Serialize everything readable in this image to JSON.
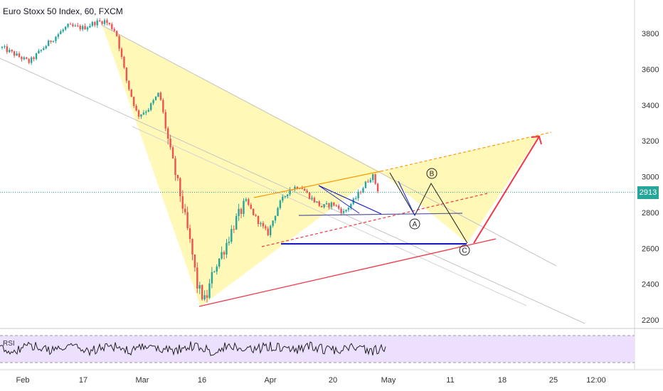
{
  "chart_data": {
    "type": "candlestick",
    "title": "Euro Stoxx 50 Index, 60, FXCM",
    "current_price": "2913",
    "y_ticks": [
      "3800",
      "3600",
      "3400",
      "3200",
      "3000",
      "2800",
      "2600",
      "2400",
      "2200"
    ],
    "y_tick_values": [
      3800,
      3600,
      3400,
      3200,
      3000,
      2800,
      2600,
      2400,
      2200
    ],
    "ylim": [
      2130,
      3980
    ],
    "x_ticks": [
      "Feb",
      "17",
      "Mar",
      "16",
      "Apr",
      "20",
      "May",
      "11",
      "18",
      "25",
      "12:00"
    ],
    "price_path": [
      {
        "t": 0.0,
        "p": 3720
      },
      {
        "t": 5,
        "p": 3640
      },
      {
        "t": 9,
        "p": 3760
      },
      {
        "t": 12,
        "p": 3840
      },
      {
        "t": 15,
        "p": 3830
      },
      {
        "t": 17,
        "p": 3860
      },
      {
        "t": 19,
        "p": 3870
      },
      {
        "t": 21,
        "p": 3810
      },
      {
        "t": 23,
        "p": 3530
      },
      {
        "t": 25,
        "p": 3340
      },
      {
        "t": 27,
        "p": 3380
      },
      {
        "t": 29,
        "p": 3470
      },
      {
        "t": 31,
        "p": 3140
      },
      {
        "t": 33,
        "p": 2880
      },
      {
        "t": 35,
        "p": 2580
      },
      {
        "t": 36,
        "p": 2390
      },
      {
        "t": 37.5,
        "p": 2300
      },
      {
        "t": 39,
        "p": 2480
      },
      {
        "t": 41,
        "p": 2600
      },
      {
        "t": 43,
        "p": 2750
      },
      {
        "t": 45,
        "p": 2860
      },
      {
        "t": 47,
        "p": 2760
      },
      {
        "t": 49,
        "p": 2680
      },
      {
        "t": 51,
        "p": 2840
      },
      {
        "t": 53,
        "p": 2930
      },
      {
        "t": 55,
        "p": 2950
      },
      {
        "t": 57,
        "p": 2880
      },
      {
        "t": 59,
        "p": 2830
      },
      {
        "t": 61,
        "p": 2850
      },
      {
        "t": 63,
        "p": 2800
      },
      {
        "t": 65,
        "p": 2870
      },
      {
        "t": 67,
        "p": 2960
      },
      {
        "t": 68.3,
        "p": 3010
      },
      {
        "t": 69.5,
        "p": 2910
      }
    ],
    "rsi": {
      "label": "RSI",
      "upper": 70,
      "lower": 30,
      "band_color": "#ede0ff"
    },
    "colors": {
      "pattern_fill": "#fff59d",
      "bull": "#26a69a",
      "bear": "#ef5350",
      "support_line": "#1515c8",
      "trend_red": "#f23645",
      "trend_orange": "#ff9800",
      "projection": "#1f1f1f",
      "price_line": "#26a69a"
    },
    "wave_labels": [
      "A",
      "B",
      "C"
    ]
  }
}
